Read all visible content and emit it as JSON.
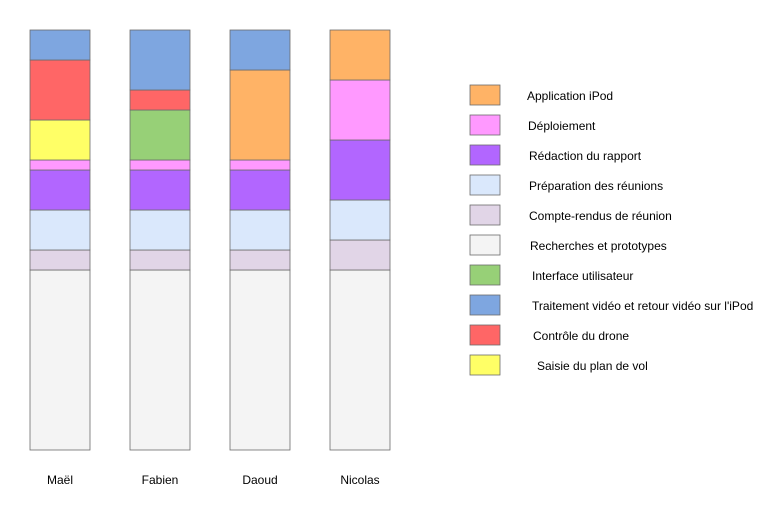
{
  "chart_data": {
    "type": "bar",
    "stacked": true,
    "title": "",
    "xlabel": "",
    "ylabel": "",
    "ylim": [
      0,
      42
    ],
    "grid": false,
    "legend_position": "right",
    "categories": [
      "Maël",
      "Fabien",
      "Daoud",
      "Nicolas"
    ],
    "series": [
      {
        "name": "Recherches et prototypes",
        "color": "#f4f4f4",
        "values": [
          18,
          18,
          18,
          18
        ]
      },
      {
        "name": "Compte-rendus de réunion",
        "color": "#e1d5e7",
        "values": [
          2,
          2,
          2,
          3
        ]
      },
      {
        "name": "Préparation des réunions",
        "color": "#dae8fc",
        "values": [
          4,
          4,
          4,
          4
        ]
      },
      {
        "name": "Rédaction du rapport",
        "color": "#b266ff",
        "values": [
          4,
          4,
          4,
          6
        ]
      },
      {
        "name": "Déploiement",
        "color": "#ff99ff",
        "values": [
          1,
          1,
          1,
          6
        ]
      },
      {
        "name": "Saisie du plan de vol",
        "color": "#ffff66",
        "values": [
          4,
          0,
          0,
          0
        ]
      },
      {
        "name": "Interface utilisateur",
        "color": "#97d077",
        "values": [
          0,
          5,
          0,
          0
        ]
      },
      {
        "name": "Contrôle du drone",
        "color": "#ff6666",
        "values": [
          6,
          2,
          0,
          0
        ]
      },
      {
        "name": "Application iPod",
        "color": "#ffb366",
        "values": [
          0,
          0,
          9,
          5
        ]
      },
      {
        "name": "Traitement vidéo et retour vidéo sur l'iPod",
        "color": "#7ea6e0",
        "values": [
          3,
          6,
          4,
          0
        ]
      }
    ],
    "legend_order": [
      "Application iPod",
      "Déploiement",
      "Rédaction du rapport",
      "Préparation des réunions",
      "Compte-rendus de réunion",
      "Recherches et prototypes",
      "Interface utilisateur",
      "Traitement vidéo et retour vidéo sur l'iPod",
      "Contrôle du drone",
      "Saisie du plan de vol"
    ]
  }
}
